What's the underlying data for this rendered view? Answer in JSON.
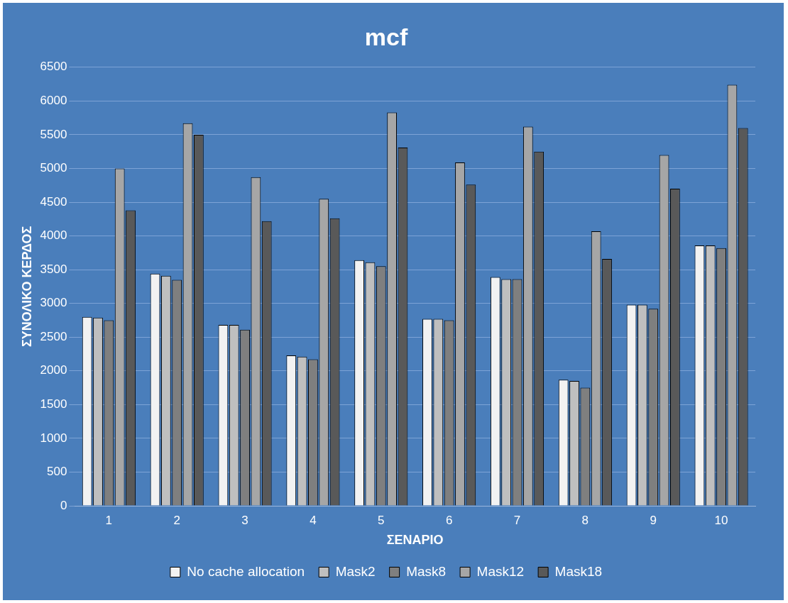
{
  "chart_data": {
    "type": "bar",
    "title": "mcf",
    "xlabel": "ΣΕΝΑΡΙΟ",
    "ylabel": "ΣΥΝΟΛΙΚΟ ΚΕΡΔΟΣ",
    "categories": [
      "1",
      "2",
      "3",
      "4",
      "5",
      "6",
      "7",
      "8",
      "9",
      "10"
    ],
    "series": [
      {
        "name": "No cache allocation",
        "color": "#f2f2f2",
        "values": [
          2800,
          3440,
          2680,
          2230,
          3640,
          2770,
          3390,
          1870,
          2980,
          3860
        ]
      },
      {
        "name": "Mask2",
        "color": "#bfbfbf",
        "values": [
          2790,
          3410,
          2680,
          2210,
          3610,
          2770,
          3360,
          1850,
          2980,
          3860
        ]
      },
      {
        "name": "Mask8",
        "color": "#7f7f7f",
        "values": [
          2750,
          3350,
          2610,
          2170,
          3550,
          2750,
          3360,
          1750,
          2920,
          3820
        ]
      },
      {
        "name": "Mask12",
        "color": "#a6a6a6",
        "values": [
          5000,
          5670,
          4870,
          4550,
          5830,
          5090,
          5620,
          4070,
          5200,
          6240
        ]
      },
      {
        "name": "Mask18",
        "color": "#595959",
        "values": [
          4380,
          5500,
          4220,
          4260,
          5310,
          4760,
          5250,
          3660,
          4700,
          5600
        ]
      }
    ],
    "ylim": [
      0,
      6500
    ],
    "yticks": [
      0,
      500,
      1000,
      1500,
      2000,
      2500,
      3000,
      3500,
      4000,
      4500,
      5000,
      5500,
      6000,
      6500
    ],
    "grid": "y",
    "legend": "bottom"
  }
}
